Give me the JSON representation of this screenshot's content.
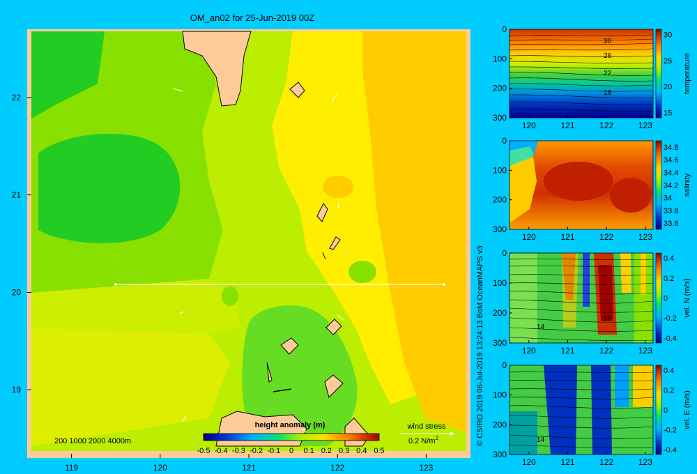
{
  "title": "OM_an02 for 25-Jun-2019 00Z",
  "credit": "© CSIRO 2019   06-Jul-2019 13:24:13 BoM OceanMAPS v3",
  "depth_legend": "200  1000  2000  4000m",
  "wind_stress": {
    "label": "wind stress",
    "scale": "0.2 N/m",
    "superscript": "2"
  },
  "chart_data": [
    {
      "type": "heatmap",
      "name": "main-map",
      "title": "OM_an02 for 25-Jun-2019 00Z",
      "xlabel": "",
      "ylabel": "",
      "x_ticks": [
        "119",
        "120",
        "121",
        "122",
        "123"
      ],
      "y_ticks": [
        "22",
        "21",
        "20",
        "19"
      ],
      "xlim": [
        118.5,
        123.5
      ],
      "ylim": [
        18.3,
        22.7
      ],
      "section_line": {
        "lat": 20,
        "lon_start": 119.5,
        "lon_end": 123.2
      },
      "colorbar": {
        "title": "height anomaly (m)",
        "ticks": [
          "-0.5",
          "-0.4",
          "-0.3",
          "-0.2",
          "-0.1",
          "0",
          "0.1",
          "0.2",
          "0.3",
          "0.4",
          "0.5"
        ],
        "range": [
          -0.5,
          0.5
        ]
      },
      "field_regions": [
        {
          "region": "west",
          "value": 0.0
        },
        {
          "region": "west-interior",
          "value": -0.07
        },
        {
          "region": "central",
          "value": 0.1
        },
        {
          "region": "east",
          "value": 0.2
        },
        {
          "region": "south-central",
          "value": 0.05
        }
      ]
    },
    {
      "type": "heatmap",
      "name": "temperature-section",
      "x_ticks": [
        "120",
        "121",
        "122",
        "123"
      ],
      "y_ticks": [
        "0",
        "100",
        "200",
        "300"
      ],
      "xlim": [
        119.5,
        123.2
      ],
      "ylim": [
        300,
        0
      ],
      "colorbar": {
        "label": "temperature",
        "ticks": [
          "30",
          "25",
          "20",
          "15"
        ],
        "range": [
          14,
          31
        ]
      },
      "contour_labels": [
        "30",
        "26",
        "22",
        "16"
      ]
    },
    {
      "type": "heatmap",
      "name": "salinity-section",
      "x_ticks": [
        "120",
        "121",
        "122",
        "123"
      ],
      "y_ticks": [
        "0",
        "100",
        "200",
        "300"
      ],
      "xlim": [
        119.5,
        123.2
      ],
      "ylim": [
        300,
        0
      ],
      "colorbar": {
        "label": "salinity",
        "ticks": [
          "34.8",
          "34.6",
          "34.4",
          "34.2",
          "34",
          "33.8",
          "33.6"
        ],
        "range": [
          33.5,
          34.9
        ]
      }
    },
    {
      "type": "heatmap",
      "name": "velocity-north-section",
      "x_ticks": [
        "120",
        "121",
        "122",
        "123"
      ],
      "y_ticks": [
        "0",
        "100",
        "200",
        "300"
      ],
      "xlim": [
        119.5,
        123.2
      ],
      "ylim": [
        300,
        0
      ],
      "colorbar": {
        "label": "vel. N (m/s)",
        "ticks": [
          "0.4",
          "0.2",
          "0",
          "-0.2",
          "-0.4"
        ],
        "range": [
          -0.45,
          0.45
        ]
      },
      "contour_labels": [
        "14",
        "16"
      ]
    },
    {
      "type": "heatmap",
      "name": "velocity-east-section",
      "x_ticks": [
        "120",
        "121",
        "122",
        "123"
      ],
      "y_ticks": [
        "0",
        "100",
        "200",
        "300"
      ],
      "xlim": [
        119.5,
        123.2
      ],
      "ylim": [
        300,
        0
      ],
      "colorbar": {
        "label": "vel. E (m/s)",
        "ticks": [
          "0.4",
          "0.2",
          "0",
          "-0.2",
          "-0.4"
        ],
        "range": [
          -0.45,
          0.45
        ]
      },
      "contour_labels": [
        "14"
      ]
    }
  ]
}
